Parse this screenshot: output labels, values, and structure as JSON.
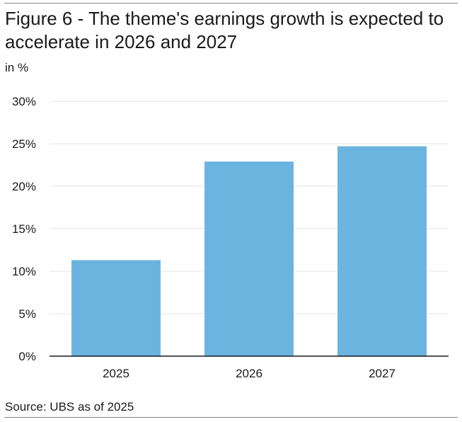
{
  "chart_data": {
    "type": "bar",
    "title": "Figure 6 - The theme's earnings growth is expected to accelerate in 2026 and 2027",
    "subtitle": "in %",
    "xlabel": "",
    "ylabel": "",
    "categories": [
      "2025",
      "2026",
      "2027"
    ],
    "values": [
      11.3,
      22.9,
      24.7
    ],
    "ylim": [
      0,
      30
    ],
    "yticks": [
      0,
      5,
      10,
      15,
      20,
      25,
      30
    ],
    "ytick_labels": [
      "0%",
      "5%",
      "10%",
      "15%",
      "20%",
      "25%",
      "30%"
    ],
    "grid": true,
    "legend": "none",
    "bar_color": "#6cb4e0",
    "source": "Source: UBS as of 2025"
  }
}
